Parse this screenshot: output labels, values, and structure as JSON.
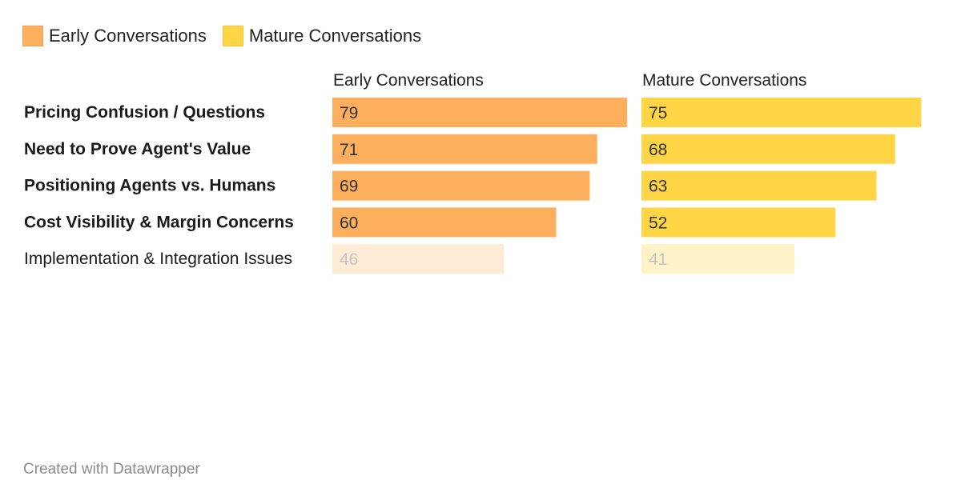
{
  "legend": [
    {
      "label": "Early Conversations",
      "color": "#fdaf5e"
    },
    {
      "label": "Mature Conversations",
      "color": "#ffd445"
    }
  ],
  "chart_data": {
    "type": "bar",
    "orientation": "horizontal",
    "categories": [
      "Pricing Confusion / Questions",
      "Need to Prove Agent's Value",
      "Positioning Agents vs. Humans",
      "Cost Visibility & Margin Concerns",
      "Implementation & Integration Issues"
    ],
    "highlighted": [
      true,
      true,
      true,
      true,
      false
    ],
    "series": [
      {
        "name": "Early Conversations",
        "values": [
          79,
          71,
          69,
          60,
          46
        ],
        "color": "#fdaf5e",
        "faded_color": "#feead5"
      },
      {
        "name": "Mature Conversations",
        "values": [
          75,
          68,
          63,
          52,
          41
        ],
        "color": "#ffd445",
        "faded_color": "#fff2c7"
      }
    ],
    "xlim": [
      0,
      79
    ],
    "grid": false,
    "legend_position": "top-left"
  },
  "footer": "Created with Datawrapper"
}
